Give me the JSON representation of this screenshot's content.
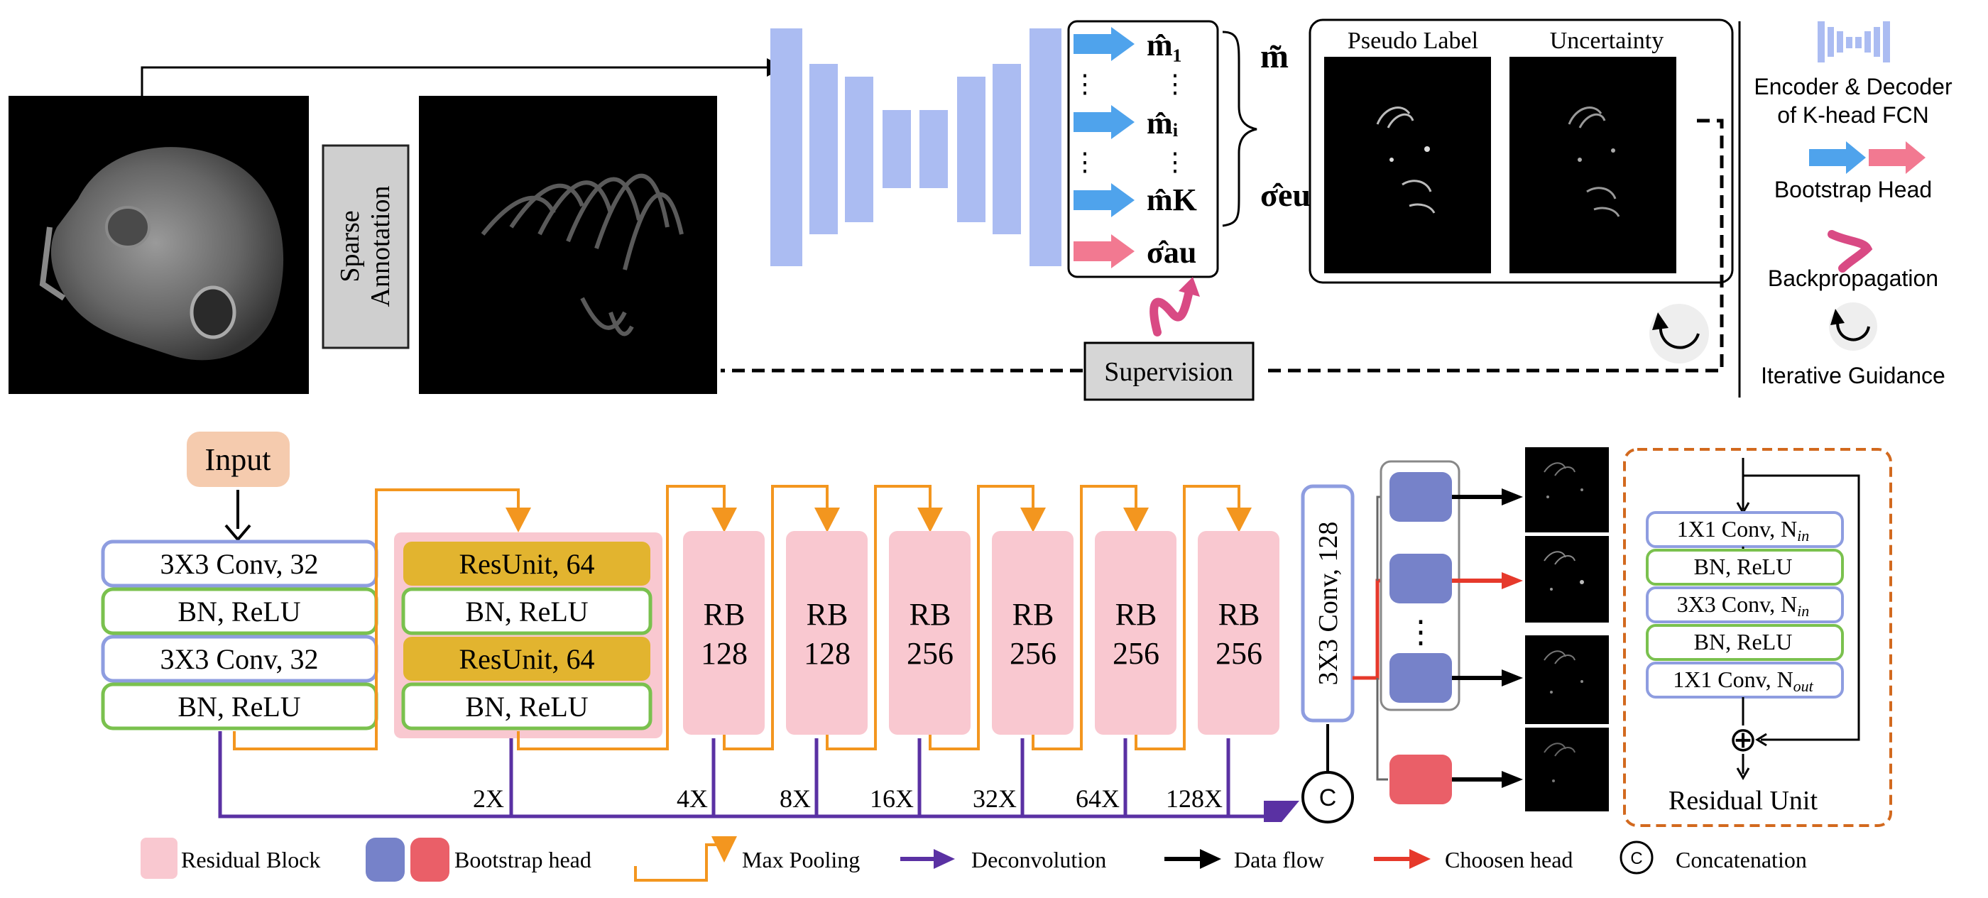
{
  "colors": {
    "encoder_blue": "#abbcf2",
    "bootstrap_blue": "#4fa3ec",
    "bootstrap_pink": "#f27991",
    "residual_pink": "#f9c8d0",
    "resunit_gold": "#e2b42f",
    "conv_border": "#8e9de0",
    "bn_border": "#7ac14e",
    "max_pool_orange": "#f3961f",
    "deconv_purple": "#5a31a3",
    "chosen_red": "#e6392b",
    "head_blue": "#7682c9",
    "head_red": "#ea5f68",
    "input_peach": "#f5cbae",
    "residual_unit_border": "#d2691e"
  },
  "top": {
    "sparse_annotation": "Sparse Annotation",
    "heads": {
      "m1": "m̂₁",
      "mi": "m̂ᵢ",
      "mk": "m̂K",
      "sigma_au": "σ̂au",
      "vdots": "⋮",
      "m_tilde": "m̃",
      "sigma_eu": "σ̂eu"
    },
    "pseudo_label": "Pseudo Label",
    "uncertainty": "Uncertainty",
    "supervision": "Supervision"
  },
  "legend_top": {
    "encoder_decoder_l1": "Encoder & Decoder",
    "encoder_decoder_l2": "of K-head FCN",
    "bootstrap_head": "Bootstrap Head",
    "backpropagation": "Backpropagation",
    "iterative_guidance": "Iterative Guidance"
  },
  "network": {
    "input": "Input",
    "conv1": "3X3 Conv, 32",
    "bn1": "BN, ReLU",
    "conv2": "3X3 Conv, 32",
    "bn2": "BN, ReLU",
    "resunit1": "ResUnit, 64",
    "bn3": "BN, ReLU",
    "resunit2": "ResUnit, 64",
    "bn4": "BN, ReLU",
    "rb": [
      {
        "name": "RB",
        "ch": "128"
      },
      {
        "name": "RB",
        "ch": "128"
      },
      {
        "name": "RB",
        "ch": "256"
      },
      {
        "name": "RB",
        "ch": "256"
      },
      {
        "name": "RB",
        "ch": "256"
      },
      {
        "name": "RB",
        "ch": "256"
      }
    ],
    "scales": [
      "2X",
      "4X",
      "8X",
      "16X",
      "32X",
      "64X",
      "128X"
    ],
    "final_conv": "3X3 Conv, 128",
    "concat": "C",
    "dots": "⋮"
  },
  "residual_unit": {
    "conv1": "1X1 Conv, N",
    "conv1_sub": "in",
    "bn1": "BN, ReLU",
    "conv2": "3X3 Conv, N",
    "conv2_sub": "in",
    "bn2": "BN, ReLU",
    "conv3": "1X1 Conv, N",
    "conv3_sub": "out",
    "plus": "⊕",
    "title": "Residual Unit"
  },
  "legend_bottom": {
    "residual_block": "Residual Block",
    "bootstrap_head": "Bootstrap head",
    "max_pooling": "Max Pooling",
    "deconvolution": "Deconvolution",
    "data_flow": "Data flow",
    "chosen_head": "Choosen head",
    "concatenation": "Concatenation",
    "concat_symbol": "C"
  }
}
